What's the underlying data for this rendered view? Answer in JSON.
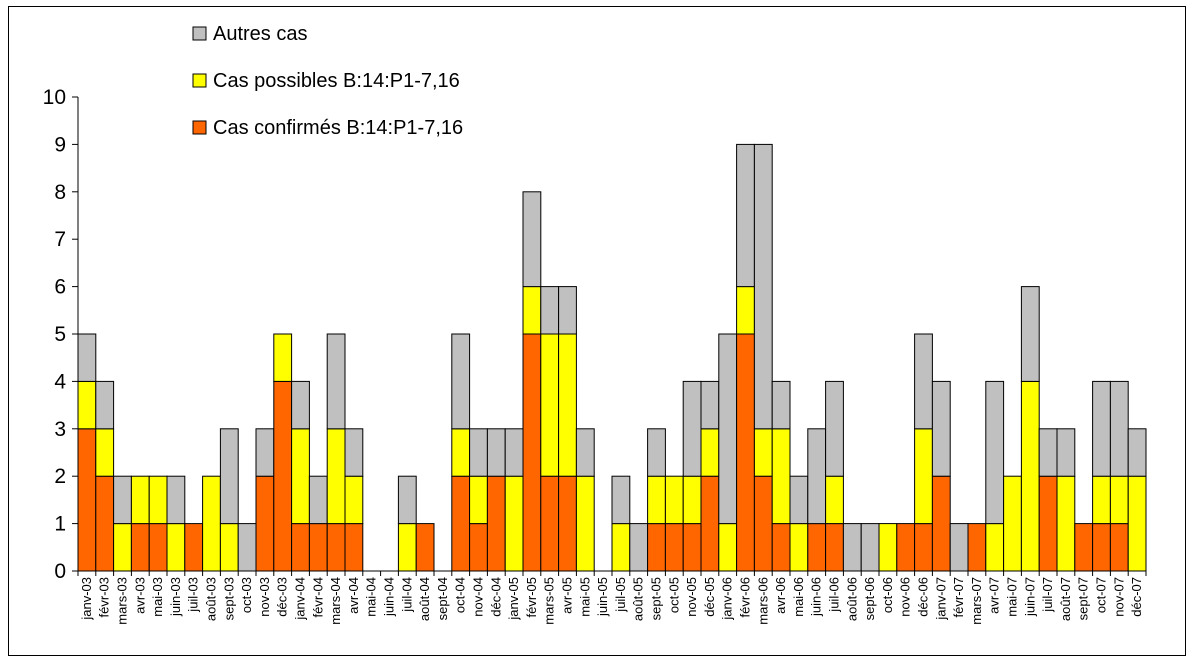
{
  "chart_data": {
    "type": "bar",
    "stacked": true,
    "ylim": [
      0,
      10
    ],
    "yticks": [
      0,
      1,
      2,
      3,
      4,
      5,
      6,
      7,
      8,
      9,
      10
    ],
    "grid": false,
    "legend_position": "top-left",
    "colors": {
      "confirmed": "#FF6600",
      "possible": "#FFFF00",
      "other": "#C0C0C0",
      "edge": "#000000"
    },
    "categories": [
      "janv-03",
      "févr-03",
      "mars-03",
      "avr-03",
      "mai-03",
      "juin-03",
      "juil-03",
      "août-03",
      "sept-03",
      "oct-03",
      "nov-03",
      "déc-03",
      "janv-04",
      "févr-04",
      "mars-04",
      "avr-04",
      "mai-04",
      "juin-04",
      "juil-04",
      "août-04",
      "sept-04",
      "oct-04",
      "nov-04",
      "déc-04",
      "janv-05",
      "févr-05",
      "mars-05",
      "avr-05",
      "mai-05",
      "juin-05",
      "juil-05",
      "août-05",
      "sept-05",
      "oct-05",
      "nov-05",
      "déc-05",
      "janv-06",
      "févr-06",
      "mars-06",
      "avr-06",
      "mai-06",
      "juin-06",
      "juil-06",
      "août-06",
      "sept-06",
      "oct-06",
      "nov-06",
      "déc-06",
      "janv-07",
      "févr-07",
      "mars-07",
      "avr-07",
      "mai-07",
      "juin-07",
      "juil-07",
      "août-07",
      "sept-07",
      "oct-07",
      "nov-07",
      "déc-07"
    ],
    "series": [
      {
        "name": "Cas confirmés B:14:P1-7,16",
        "key": "confirmed",
        "values": [
          3,
          2,
          0,
          1,
          1,
          0,
          1,
          0,
          0,
          0,
          2,
          4,
          1,
          1,
          1,
          1,
          0,
          0,
          0,
          1,
          0,
          2,
          1,
          2,
          0,
          5,
          2,
          2,
          0,
          0,
          0,
          0,
          1,
          1,
          1,
          2,
          0,
          5,
          2,
          1,
          0,
          1,
          1,
          0,
          0,
          0,
          1,
          1,
          2,
          0,
          1,
          0,
          0,
          0,
          2,
          0,
          1,
          1,
          1,
          0
        ]
      },
      {
        "name": "Cas possibles B:14:P1-7,16",
        "key": "possible",
        "values": [
          1,
          1,
          1,
          1,
          1,
          1,
          0,
          2,
          1,
          0,
          0,
          1,
          2,
          0,
          2,
          1,
          0,
          0,
          1,
          0,
          0,
          1,
          1,
          0,
          2,
          1,
          3,
          3,
          2,
          0,
          1,
          0,
          1,
          1,
          1,
          1,
          1,
          1,
          1,
          2,
          1,
          0,
          1,
          0,
          0,
          1,
          0,
          2,
          0,
          0,
          0,
          1,
          2,
          4,
          0,
          2,
          0,
          1,
          1,
          2
        ]
      },
      {
        "name": "Autres cas",
        "key": "other",
        "values": [
          1,
          1,
          1,
          0,
          0,
          1,
          0,
          0,
          2,
          1,
          1,
          0,
          1,
          1,
          2,
          1,
          0,
          0,
          1,
          0,
          0,
          2,
          1,
          1,
          1,
          2,
          1,
          1,
          1,
          0,
          1,
          1,
          1,
          0,
          2,
          1,
          4,
          3,
          6,
          1,
          1,
          2,
          2,
          1,
          1,
          0,
          0,
          2,
          2,
          1,
          0,
          3,
          0,
          2,
          1,
          1,
          0,
          2,
          2,
          1
        ]
      }
    ],
    "legend_order": [
      "other",
      "possible",
      "confirmed"
    ]
  }
}
